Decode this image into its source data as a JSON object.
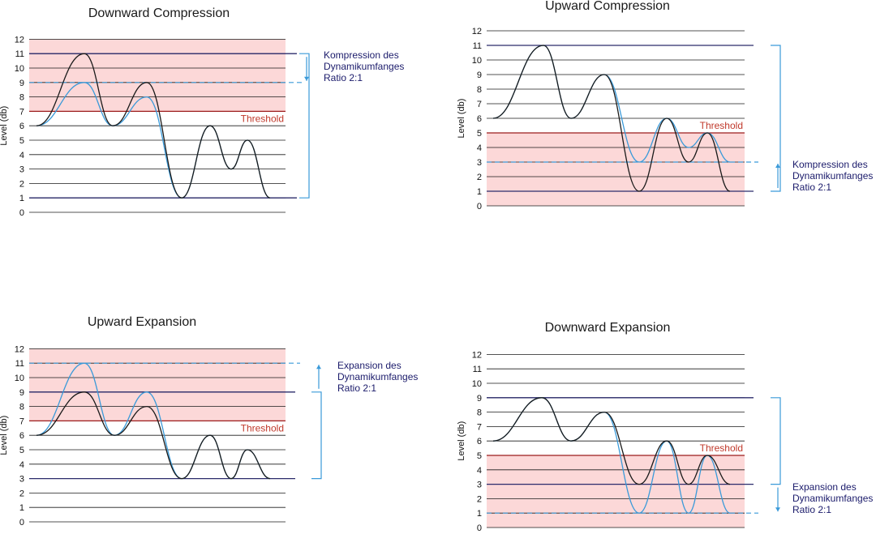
{
  "colors": {
    "zone_fill": "#fcd8d8",
    "threshold_line": "#9b1c1c",
    "threshold_text": "#c0392b",
    "grid": "#1a1a1a",
    "reference_line": "#2b2b6b",
    "original_curve": "#1a1a1a",
    "processed_curve": "#3a9ad9",
    "bracket": "#3a9ad9",
    "annotation_text": "#1b1b6b"
  },
  "y_label": "Level (db)",
  "y_ticks": [
    "0",
    "1",
    "2",
    "3",
    "4",
    "5",
    "6",
    "7",
    "8",
    "9",
    "10",
    "11",
    "12"
  ],
  "threshold_label": "Threshold",
  "panels": [
    {
      "id": "downward-compression",
      "title": "Downward Compression",
      "zone": [
        7,
        12
      ],
      "threshold": 7,
      "reference_lines": [
        11,
        1
      ],
      "dashed_level": 9,
      "arrow": "down",
      "annotation": [
        "Kompression des",
        "Dynamikumfanges",
        "Ratio 2:1"
      ],
      "original_peaks": [
        6,
        11,
        6,
        9,
        1,
        6,
        3,
        5,
        1
      ],
      "processed_peaks": [
        6,
        9,
        6,
        8,
        1,
        6,
        3,
        5,
        1
      ]
    },
    {
      "id": "upward-compression",
      "title": "Upward Compression",
      "zone": [
        0,
        5
      ],
      "threshold": 5,
      "reference_lines": [
        11,
        1
      ],
      "dashed_level": 3,
      "arrow": "up",
      "annotation": [
        "Kompression des",
        "Dynamikumfanges",
        "Ratio 2:1"
      ],
      "original_peaks": [
        6,
        11,
        6,
        9,
        1,
        6,
        3,
        5,
        1
      ],
      "processed_peaks": [
        6,
        11,
        6,
        9,
        3,
        6,
        4,
        5,
        3
      ]
    },
    {
      "id": "upward-expansion",
      "title": "Upward Expansion",
      "zone": [
        7,
        12
      ],
      "threshold": 7,
      "reference_lines": [
        9,
        3
      ],
      "dashed_level": 11,
      "arrow": "up",
      "annotation": [
        "Expansion des",
        "Dynamikumfanges",
        "Ratio 2:1"
      ],
      "original_peaks": [
        6,
        9,
        6,
        8,
        3,
        6,
        3,
        5,
        3
      ],
      "processed_peaks": [
        6,
        11,
        6,
        9,
        3,
        6,
        3,
        5,
        3
      ]
    },
    {
      "id": "downward-expansion",
      "title": "Downward Expansion",
      "zone": [
        0,
        5
      ],
      "threshold": 5,
      "reference_lines": [
        9,
        3
      ],
      "dashed_level": 1,
      "arrow": "down",
      "annotation": [
        "Expansion des",
        "Dynamikumfanges",
        "Ratio 2:1"
      ],
      "original_peaks": [
        6,
        9,
        6,
        8,
        3,
        6,
        3,
        5,
        3
      ],
      "processed_peaks": [
        6,
        9,
        6,
        8,
        1,
        6,
        1,
        5,
        1
      ]
    }
  ]
}
